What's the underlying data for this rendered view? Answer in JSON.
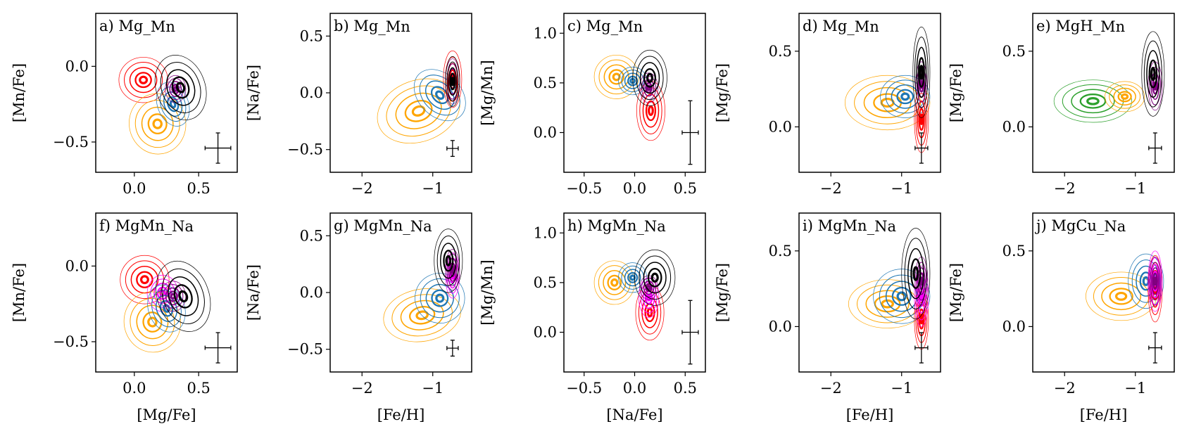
{
  "chart_data": [
    {
      "type": "contour",
      "title": "a) Mg_Mn",
      "xlabel": "",
      "ylabel": "[Mn/Fe]",
      "xlim": [
        -0.3,
        0.8
      ],
      "ylim": [
        -0.7,
        0.35
      ],
      "xticks": [
        0.0,
        0.5
      ],
      "yticks": [
        -0.5,
        0.0
      ],
      "xtick_labels": [
        "0.0",
        "0.5"
      ],
      "ytick_labels": [
        "−0.5",
        "0.0"
      ],
      "errorbar": {
        "x": 0.65,
        "y": -0.54,
        "xerr": 0.1,
        "yerr": 0.1
      },
      "series": [
        {
          "color": "#ff0000",
          "center": [
            0.07,
            -0.09
          ],
          "spread": [
            0.19,
            0.15
          ],
          "tilt": 0
        },
        {
          "color": "#ffa500",
          "center": [
            0.18,
            -0.38
          ],
          "spread": [
            0.22,
            0.2
          ],
          "tilt": 10
        },
        {
          "color": "#1f77b4",
          "center": [
            0.3,
            -0.25
          ],
          "spread": [
            0.12,
            0.15
          ],
          "tilt": 20
        },
        {
          "color": "#800080",
          "center": [
            0.32,
            -0.15
          ],
          "spread": [
            0.08,
            0.09
          ],
          "tilt": 0
        },
        {
          "color": "#000000",
          "center": [
            0.36,
            -0.14
          ],
          "spread": [
            0.19,
            0.22
          ],
          "tilt": 20
        }
      ]
    },
    {
      "type": "contour",
      "title": "b) Mg_Mn",
      "xlabel": "",
      "ylabel": "[Na/Fe]",
      "xlim": [
        -2.45,
        -0.45
      ],
      "ylim": [
        -0.7,
        0.7
      ],
      "xticks": [
        -2,
        -1
      ],
      "yticks": [
        -0.5,
        0.0,
        0.5
      ],
      "xtick_labels": [
        "−2",
        "−1"
      ],
      "ytick_labels": [
        "−0.5",
        "0.0",
        "0.5"
      ],
      "errorbar": {
        "x": -0.72,
        "y": -0.49,
        "xerr": 0.08,
        "yerr": 0.07
      },
      "series": [
        {
          "color": "#ffa500",
          "center": [
            -1.2,
            -0.16
          ],
          "spread": [
            0.6,
            0.27
          ],
          "tilt": 20
        },
        {
          "color": "#1f77b4",
          "center": [
            -0.9,
            -0.02
          ],
          "spread": [
            0.3,
            0.26
          ],
          "tilt": 45
        },
        {
          "color": "#ff0000",
          "center": [
            -0.72,
            0.12
          ],
          "spread": [
            0.13,
            0.25
          ],
          "tilt": 0
        },
        {
          "color": "#800080",
          "center": [
            -0.72,
            0.1
          ],
          "spread": [
            0.1,
            0.2
          ],
          "tilt": 0
        },
        {
          "color": "#000000",
          "center": [
            -0.72,
            0.1
          ],
          "spread": [
            0.1,
            0.22
          ],
          "tilt": 0
        }
      ]
    },
    {
      "type": "contour",
      "title": "c) Mg_Mn",
      "xlabel": "",
      "ylabel": "[Mg/Mn]",
      "xlim": [
        -0.7,
        0.7
      ],
      "ylim": [
        -0.4,
        1.2
      ],
      "xticks": [
        -0.5,
        0.0,
        0.5
      ],
      "yticks": [
        0.0,
        0.5,
        1.0
      ],
      "xtick_labels": [
        "−0.5",
        "0.0",
        "0.5"
      ],
      "ytick_labels": [
        "0.0",
        "0.5",
        "1.0"
      ],
      "errorbar": {
        "x": 0.55,
        "y": 0.0,
        "xerr": 0.08,
        "yerr": 0.32
      },
      "series": [
        {
          "color": "#ffa500",
          "center": [
            -0.18,
            0.56
          ],
          "spread": [
            0.22,
            0.22
          ],
          "tilt": 0
        },
        {
          "color": "#1f77b4",
          "center": [
            -0.02,
            0.52
          ],
          "spread": [
            0.14,
            0.14
          ],
          "tilt": 0
        },
        {
          "color": "#ff0000",
          "center": [
            0.16,
            0.22
          ],
          "spread": [
            0.14,
            0.3
          ],
          "tilt": 0
        },
        {
          "color": "#800080",
          "center": [
            0.14,
            0.45
          ],
          "spread": [
            0.09,
            0.15
          ],
          "tilt": 0
        },
        {
          "color": "#000000",
          "center": [
            0.15,
            0.55
          ],
          "spread": [
            0.17,
            0.28
          ],
          "tilt": 0
        }
      ]
    },
    {
      "type": "contour",
      "title": "d) Mg_Mn",
      "xlabel": "",
      "ylabel": "[Mg/Fe]",
      "xlim": [
        -2.45,
        -0.45
      ],
      "ylim": [
        -0.3,
        0.75
      ],
      "xticks": [
        -2,
        -1
      ],
      "yticks": [
        0.0,
        0.5
      ],
      "xtick_labels": [
        "−2",
        "−1"
      ],
      "ytick_labels": [
        "0.0",
        "0.5"
      ],
      "errorbar": {
        "x": -0.72,
        "y": -0.14,
        "xerr": 0.09,
        "yerr": 0.1
      },
      "series": [
        {
          "color": "#ffa500",
          "center": [
            -1.2,
            0.16
          ],
          "spread": [
            0.6,
            0.18
          ],
          "tilt": 0
        },
        {
          "color": "#1f77b4",
          "center": [
            -0.95,
            0.2
          ],
          "spread": [
            0.35,
            0.14
          ],
          "tilt": 0
        },
        {
          "color": "#ff0000",
          "center": [
            -0.72,
            0.05
          ],
          "spread": [
            0.1,
            0.22
          ],
          "tilt": 0
        },
        {
          "color": "#800080",
          "center": [
            -0.72,
            0.28
          ],
          "spread": [
            0.08,
            0.15
          ],
          "tilt": 0
        },
        {
          "color": "#000000",
          "center": [
            -0.72,
            0.36
          ],
          "spread": [
            0.12,
            0.3
          ],
          "tilt": 0
        }
      ]
    },
    {
      "type": "contour",
      "title": "e) MgH_Mn",
      "xlabel": "",
      "ylabel": "[Mg/Fe]",
      "xlim": [
        -2.45,
        -0.45
      ],
      "ylim": [
        -0.3,
        0.75
      ],
      "xticks": [
        -2,
        -1
      ],
      "yticks": [
        0.0,
        0.5
      ],
      "xtick_labels": [
        "−2",
        "−1"
      ],
      "ytick_labels": [
        "0.0",
        "0.5"
      ],
      "errorbar": {
        "x": -0.72,
        "y": -0.14,
        "xerr": 0.09,
        "yerr": 0.1
      },
      "series": [
        {
          "color": "#2ca02c",
          "center": [
            -1.6,
            0.17
          ],
          "spread": [
            0.55,
            0.14
          ],
          "tilt": 0
        },
        {
          "color": "#ffa500",
          "center": [
            -1.15,
            0.2
          ],
          "spread": [
            0.28,
            0.1
          ],
          "tilt": 0
        },
        {
          "color": "#800080",
          "center": [
            -0.72,
            0.27
          ],
          "spread": [
            0.1,
            0.16
          ],
          "tilt": 0
        },
        {
          "color": "#000000",
          "center": [
            -0.75,
            0.35
          ],
          "spread": [
            0.16,
            0.28
          ],
          "tilt": 0
        }
      ]
    },
    {
      "type": "contour",
      "title": "f) MgMn_Na",
      "xlabel": "[Mg/Fe]",
      "ylabel": "[Mn/Fe]",
      "xlim": [
        -0.3,
        0.8
      ],
      "ylim": [
        -0.7,
        0.35
      ],
      "xticks": [
        0.0,
        0.5
      ],
      "yticks": [
        -0.5,
        0.0
      ],
      "xtick_labels": [
        "0.0",
        "0.5"
      ],
      "ytick_labels": [
        "−0.5",
        "0.0"
      ],
      "errorbar": {
        "x": 0.65,
        "y": -0.54,
        "xerr": 0.1,
        "yerr": 0.1
      },
      "series": [
        {
          "color": "#ff0000",
          "center": [
            0.08,
            -0.09
          ],
          "spread": [
            0.19,
            0.16
          ],
          "tilt": 0
        },
        {
          "color": "#ff00ff",
          "center": [
            0.22,
            -0.18
          ],
          "spread": [
            0.12,
            0.12
          ],
          "tilt": 0
        },
        {
          "color": "#ffa500",
          "center": [
            0.14,
            -0.37
          ],
          "spread": [
            0.22,
            0.2
          ],
          "tilt": 10
        },
        {
          "color": "#1f77b4",
          "center": [
            0.25,
            -0.28
          ],
          "spread": [
            0.14,
            0.16
          ],
          "tilt": 20
        },
        {
          "color": "#800080",
          "center": [
            0.3,
            -0.2
          ],
          "spread": [
            0.1,
            0.1
          ],
          "tilt": 0
        },
        {
          "color": "#000000",
          "center": [
            0.38,
            -0.2
          ],
          "spread": [
            0.2,
            0.24
          ],
          "tilt": 20
        }
      ]
    },
    {
      "type": "contour",
      "title": "g) MgMn_Na",
      "xlabel": "[Fe/H]",
      "ylabel": "[Na/Fe]",
      "xlim": [
        -2.45,
        -0.45
      ],
      "ylim": [
        -0.7,
        0.7
      ],
      "xticks": [
        -2,
        -1
      ],
      "yticks": [
        -0.5,
        0.0,
        0.5
      ],
      "xtick_labels": [
        "−2",
        "−1"
      ],
      "ytick_labels": [
        "−0.5",
        "0.0",
        "0.5"
      ],
      "errorbar": {
        "x": -0.72,
        "y": -0.49,
        "xerr": 0.08,
        "yerr": 0.07
      },
      "series": [
        {
          "color": "#ffa500",
          "center": [
            -1.15,
            -0.2
          ],
          "spread": [
            0.55,
            0.23
          ],
          "tilt": 10
        },
        {
          "color": "#1f77b4",
          "center": [
            -0.9,
            -0.05
          ],
          "spread": [
            0.35,
            0.22
          ],
          "tilt": 30
        },
        {
          "color": "#ff00ff",
          "center": [
            -0.72,
            0.15
          ],
          "spread": [
            0.1,
            0.2
          ],
          "tilt": 0
        },
        {
          "color": "#800080",
          "center": [
            -0.72,
            0.2
          ],
          "spread": [
            0.1,
            0.18
          ],
          "tilt": 0
        },
        {
          "color": "#000000",
          "center": [
            -0.78,
            0.28
          ],
          "spread": [
            0.2,
            0.28
          ],
          "tilt": 0
        }
      ]
    },
    {
      "type": "contour",
      "title": "h) MgMn_Na",
      "xlabel": "[Na/Fe]",
      "ylabel": "[Mg/Mn]",
      "xlim": [
        -0.7,
        0.7
      ],
      "ylim": [
        -0.4,
        1.2
      ],
      "xticks": [
        -0.5,
        0.0,
        0.5
      ],
      "yticks": [
        0.0,
        0.5,
        1.0
      ],
      "xtick_labels": [
        "−0.5",
        "0.0",
        "0.5"
      ],
      "ytick_labels": [
        "0.0",
        "0.5",
        "1.0"
      ],
      "errorbar": {
        "x": 0.55,
        "y": 0.0,
        "xerr": 0.08,
        "yerr": 0.32
      },
      "series": [
        {
          "color": "#ffa500",
          "center": [
            -0.2,
            0.5
          ],
          "spread": [
            0.2,
            0.22
          ],
          "tilt": 0
        },
        {
          "color": "#1f77b4",
          "center": [
            -0.02,
            0.55
          ],
          "spread": [
            0.14,
            0.15
          ],
          "tilt": 0
        },
        {
          "color": "#ff0000",
          "center": [
            0.15,
            0.2
          ],
          "spread": [
            0.14,
            0.28
          ],
          "tilt": 0
        },
        {
          "color": "#ff00ff",
          "center": [
            0.14,
            0.35
          ],
          "spread": [
            0.1,
            0.2
          ],
          "tilt": 0
        },
        {
          "color": "#800080",
          "center": [
            0.14,
            0.45
          ],
          "spread": [
            0.09,
            0.12
          ],
          "tilt": 0
        },
        {
          "color": "#000000",
          "center": [
            0.2,
            0.55
          ],
          "spread": [
            0.2,
            0.28
          ],
          "tilt": 0
        }
      ]
    },
    {
      "type": "contour",
      "title": "i) MgMn_Na",
      "xlabel": "[Fe/H]",
      "ylabel": "[Mg/Fe]",
      "xlim": [
        -2.45,
        -0.45
      ],
      "ylim": [
        -0.3,
        0.75
      ],
      "xticks": [
        -2,
        -1
      ],
      "yticks": [
        0.0,
        0.5
      ],
      "xtick_labels": [
        "−2",
        "−1"
      ],
      "ytick_labels": [
        "0.0",
        "0.5"
      ],
      "errorbar": {
        "x": -0.72,
        "y": -0.14,
        "xerr": 0.09,
        "yerr": 0.1
      },
      "series": [
        {
          "color": "#ffa500",
          "center": [
            -1.2,
            0.15
          ],
          "spread": [
            0.55,
            0.16
          ],
          "tilt": 0
        },
        {
          "color": "#1f77b4",
          "center": [
            -1.0,
            0.2
          ],
          "spread": [
            0.4,
            0.18
          ],
          "tilt": 0
        },
        {
          "color": "#ff0000",
          "center": [
            -0.72,
            0.05
          ],
          "spread": [
            0.1,
            0.2
          ],
          "tilt": 0
        },
        {
          "color": "#ff00ff",
          "center": [
            -0.72,
            0.2
          ],
          "spread": [
            0.1,
            0.2
          ],
          "tilt": 0
        },
        {
          "color": "#800080",
          "center": [
            -0.72,
            0.3
          ],
          "spread": [
            0.09,
            0.16
          ],
          "tilt": 0
        },
        {
          "color": "#000000",
          "center": [
            -0.8,
            0.35
          ],
          "spread": [
            0.2,
            0.3
          ],
          "tilt": 0
        }
      ]
    },
    {
      "type": "contour",
      "title": "j) MgCu_Na",
      "xlabel": "[Fe/H]",
      "ylabel": "[Mg/Fe]",
      "xlim": [
        -2.45,
        -0.45
      ],
      "ylim": [
        -0.3,
        0.75
      ],
      "xticks": [
        -2,
        -1
      ],
      "yticks": [
        0.0,
        0.5
      ],
      "xtick_labels": [
        "−2",
        "−1"
      ],
      "ytick_labels": [
        "0.0",
        "0.5"
      ],
      "errorbar": {
        "x": -0.72,
        "y": -0.14,
        "xerr": 0.09,
        "yerr": 0.1
      },
      "series": [
        {
          "color": "#ffa500",
          "center": [
            -1.2,
            0.2
          ],
          "spread": [
            0.5,
            0.16
          ],
          "tilt": 0
        },
        {
          "color": "#1f77b4",
          "center": [
            -0.85,
            0.3
          ],
          "spread": [
            0.25,
            0.18
          ],
          "tilt": 0
        },
        {
          "color": "#ff0000",
          "center": [
            -0.72,
            0.25
          ],
          "spread": [
            0.1,
            0.22
          ],
          "tilt": 0
        },
        {
          "color": "#ff00ff",
          "center": [
            -0.72,
            0.3
          ],
          "spread": [
            0.1,
            0.2
          ],
          "tilt": 0
        },
        {
          "color": "#800080",
          "center": [
            -0.72,
            0.3
          ],
          "spread": [
            0.09,
            0.16
          ],
          "tilt": 0
        }
      ]
    }
  ]
}
